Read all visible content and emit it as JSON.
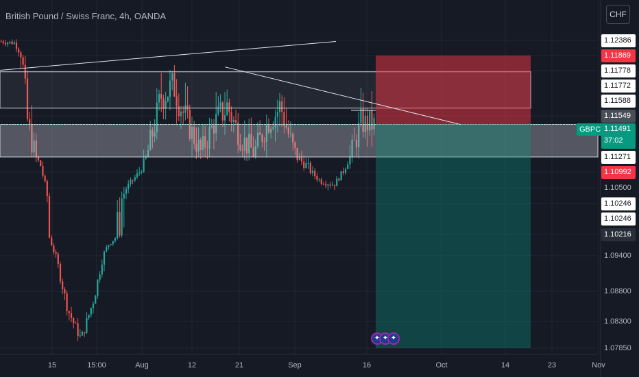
{
  "header": {
    "title": "British Pound / Swiss Franc, 4h, OANDA",
    "currency_button": "CHF"
  },
  "symbol_tag": "GBPCHF",
  "current_price": {
    "price": "1.11491",
    "countdown": "37:02"
  },
  "price_axis_labels": [
    {
      "text": "1.12386",
      "style": "white"
    },
    {
      "text": "1.11869",
      "style": "red"
    },
    {
      "text": "1.11778",
      "style": "white"
    },
    {
      "text": "1.11772",
      "style": "white"
    },
    {
      "text": "1.11588",
      "style": "white"
    },
    {
      "text": "1.11549",
      "style": "gray"
    },
    {
      "text": "1.11271",
      "style": "white"
    },
    {
      "text": "1.10992",
      "style": "red"
    },
    {
      "text": "1.10500",
      "style": "plain"
    },
    {
      "text": "1.10246",
      "style": "white"
    },
    {
      "text": "1.10246",
      "style": "white"
    },
    {
      "text": "1.10216",
      "style": "dark"
    },
    {
      "text": "1.09400",
      "style": "plain"
    },
    {
      "text": "1.08800",
      "style": "plain"
    },
    {
      "text": "1.08300",
      "style": "plain"
    },
    {
      "text": "1.07850",
      "style": "plain"
    }
  ],
  "time_axis_labels": [
    "15",
    "15:00",
    "Aug",
    "12",
    "21",
    "Sep",
    "16",
    "Oct",
    "14",
    "23",
    "Nov"
  ],
  "colors": {
    "background": "#161a25",
    "grid": "#232632",
    "bull": "#26a69a",
    "bear": "#ef5350",
    "stop_zone": "#f23645",
    "target_zone": "#089981"
  },
  "chart_data": {
    "type": "candlestick",
    "title": "British Pound / Swiss Franc, 4h, OANDA",
    "symbol": "GBPCHF",
    "y_axis_ticks": [
      1.105,
      1.094,
      1.088,
      1.083,
      1.0785
    ],
    "x_axis_ticks": [
      "15",
      "15:00",
      "Aug",
      "12",
      "21",
      "Sep",
      "16",
      "Oct",
      "14",
      "23",
      "Nov"
    ],
    "last_price": 1.11491,
    "position": {
      "side": "short",
      "entry": 1.11491,
      "stop": 1.11869,
      "target": 1.0785
    },
    "horizontal_zones": [
      {
        "from": 1.11588,
        "to": 1.11772
      },
      {
        "from": 1.11271,
        "to": 1.11491
      }
    ],
    "trendlines": [
      {
        "from": [
          "15",
          1.1178
        ],
        "to": [
          "Sep",
          1.1235
        ]
      },
      {
        "from": [
          "21",
          1.118
        ],
        "to": [
          "Oct",
          1.1149
        ]
      }
    ],
    "series": [
      {
        "values": [
          1.1235,
          1.123,
          1.115,
          1.111,
          1.095,
          1.085,
          1.08,
          1.087,
          1.098,
          1.103,
          1.108,
          1.113,
          1.1165,
          1.117,
          1.115,
          1.113,
          1.115,
          1.116,
          1.114,
          1.113,
          1.115,
          1.116,
          1.113,
          1.111,
          1.107,
          1.106,
          1.112,
          1.115,
          1.1149
        ]
      }
    ]
  }
}
